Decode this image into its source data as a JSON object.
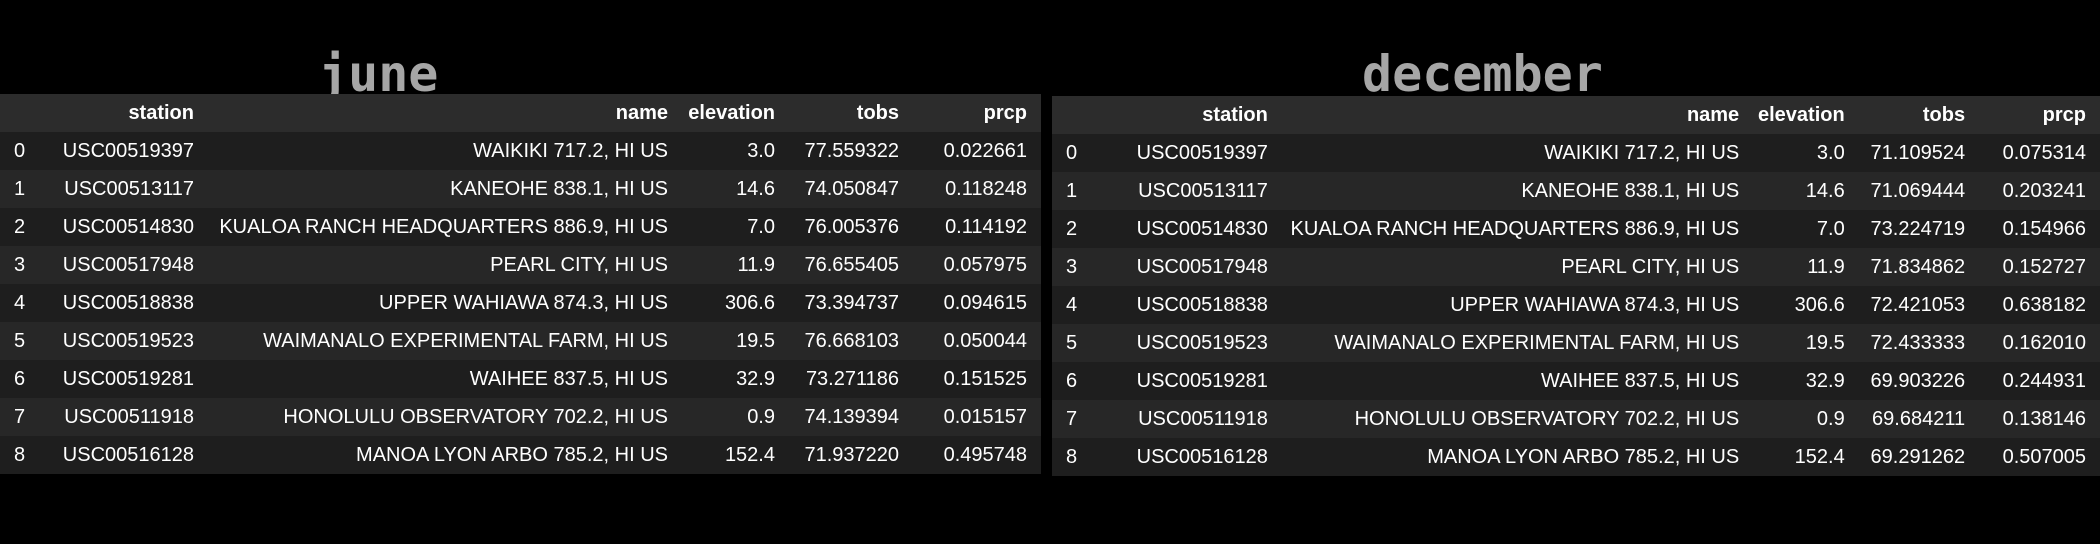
{
  "june": {
    "title": "june",
    "columns": [
      "",
      "station",
      "name",
      "elevation",
      "tobs",
      "prcp"
    ],
    "rows": [
      [
        "0",
        "USC00519397",
        "WAIKIKI 717.2, HI US",
        "3.0",
        "77.559322",
        "0.022661"
      ],
      [
        "1",
        "USC00513117",
        "KANEOHE 838.1, HI US",
        "14.6",
        "74.050847",
        "0.118248"
      ],
      [
        "2",
        "USC00514830",
        "KUALOA RANCH HEADQUARTERS 886.9, HI US",
        "7.0",
        "76.005376",
        "0.114192"
      ],
      [
        "3",
        "USC00517948",
        "PEARL CITY, HI US",
        "11.9",
        "76.655405",
        "0.057975"
      ],
      [
        "4",
        "USC00518838",
        "UPPER WAHIAWA 874.3, HI US",
        "306.6",
        "73.394737",
        "0.094615"
      ],
      [
        "5",
        "USC00519523",
        "WAIMANALO EXPERIMENTAL FARM, HI US",
        "19.5",
        "76.668103",
        "0.050044"
      ],
      [
        "6",
        "USC00519281",
        "WAIHEE 837.5, HI US",
        "32.9",
        "73.271186",
        "0.151525"
      ],
      [
        "7",
        "USC00511918",
        "HONOLULU OBSERVATORY 702.2, HI US",
        "0.9",
        "74.139394",
        "0.015157"
      ],
      [
        "8",
        "USC00516128",
        "MANOA LYON ARBO 785.2, HI US",
        "152.4",
        "71.937220",
        "0.495748"
      ]
    ]
  },
  "december": {
    "title": "december",
    "columns": [
      "",
      "station",
      "name",
      "elevation",
      "tobs",
      "prcp"
    ],
    "rows": [
      [
        "0",
        "USC00519397",
        "WAIKIKI 717.2, HI US",
        "3.0",
        "71.109524",
        "0.075314"
      ],
      [
        "1",
        "USC00513117",
        "KANEOHE 838.1, HI US",
        "14.6",
        "71.069444",
        "0.203241"
      ],
      [
        "2",
        "USC00514830",
        "KUALOA RANCH HEADQUARTERS 886.9, HI US",
        "7.0",
        "73.224719",
        "0.154966"
      ],
      [
        "3",
        "USC00517948",
        "PEARL CITY, HI US",
        "11.9",
        "71.834862",
        "0.152727"
      ],
      [
        "4",
        "USC00518838",
        "UPPER WAHIAWA 874.3, HI US",
        "306.6",
        "72.421053",
        "0.638182"
      ],
      [
        "5",
        "USC00519523",
        "WAIMANALO EXPERIMENTAL FARM, HI US",
        "19.5",
        "72.433333",
        "0.162010"
      ],
      [
        "6",
        "USC00519281",
        "WAIHEE 837.5, HI US",
        "32.9",
        "69.903226",
        "0.244931"
      ],
      [
        "7",
        "USC00511918",
        "HONOLULU OBSERVATORY 702.2, HI US",
        "0.9",
        "69.684211",
        "0.138146"
      ],
      [
        "8",
        "USC00516128",
        "MANOA LYON ARBO 785.2, HI US",
        "152.4",
        "69.291262",
        "0.507005"
      ]
    ]
  }
}
